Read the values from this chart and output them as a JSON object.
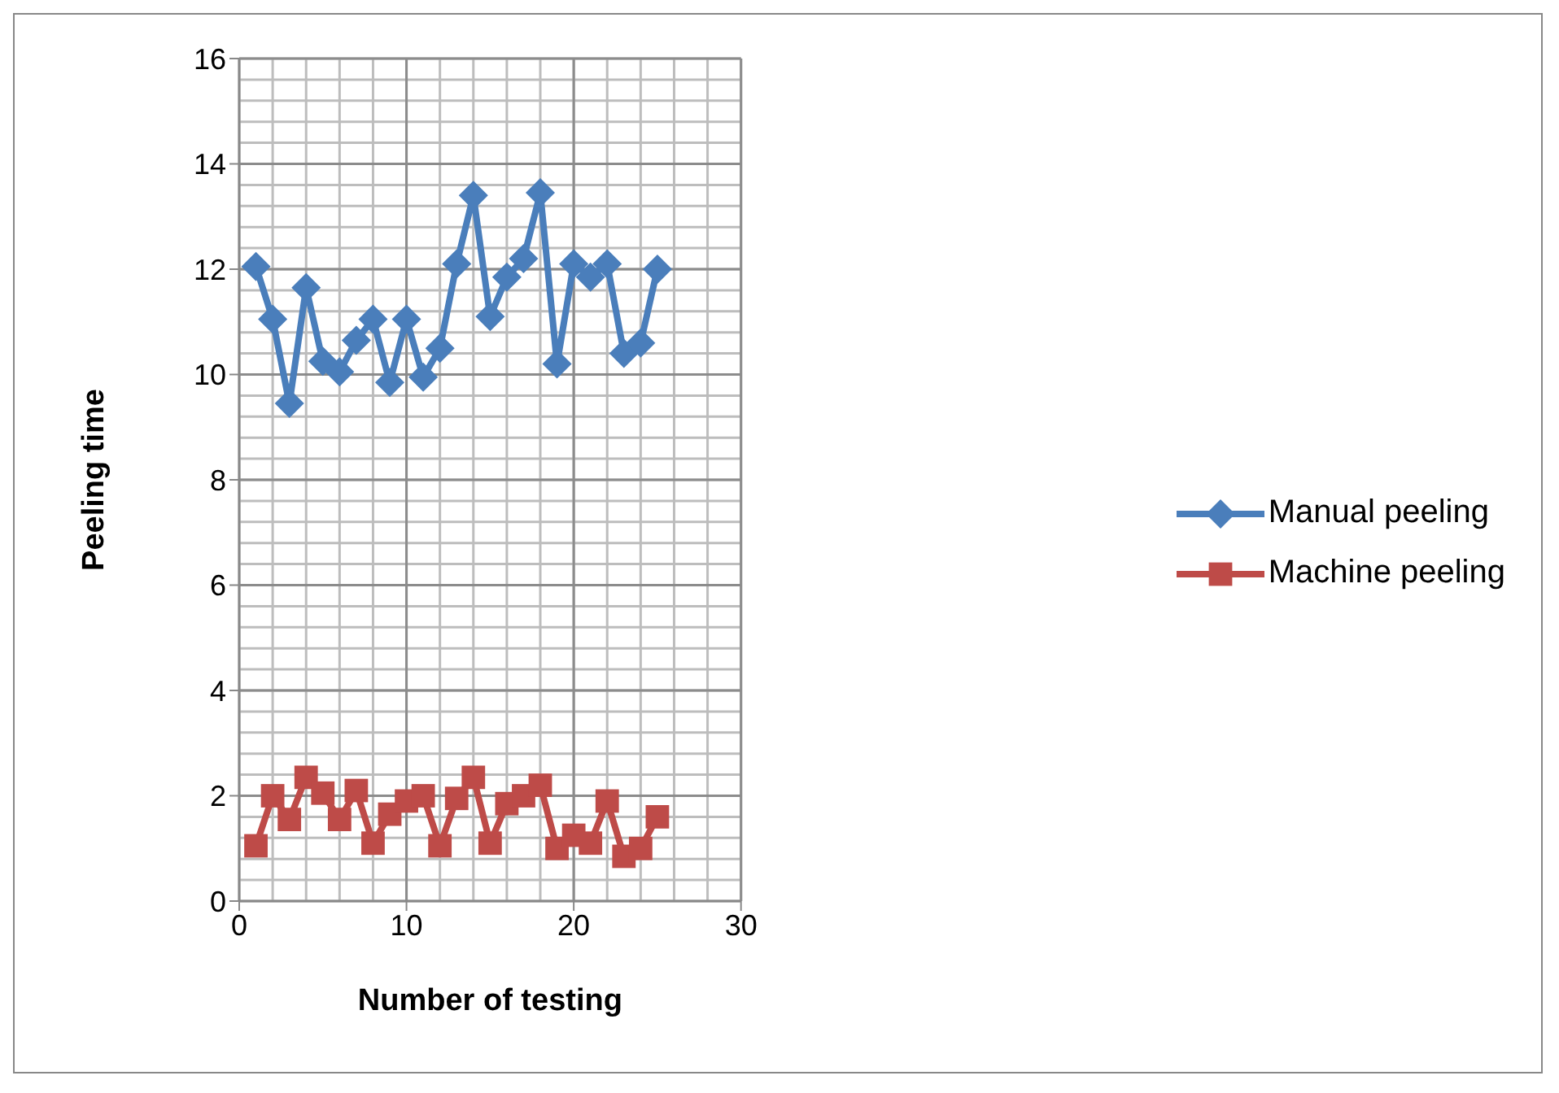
{
  "chart_data": {
    "type": "line",
    "xlabel": "Number of testing",
    "ylabel": "Peeling  time",
    "x": [
      1,
      2,
      3,
      4,
      5,
      6,
      7,
      8,
      9,
      10,
      11,
      12,
      13,
      14,
      15,
      16,
      17,
      18,
      19,
      20,
      21,
      22,
      23,
      24,
      25
    ],
    "series": [
      {
        "name": "Manual peeling",
        "color": "#4a7ebb",
        "marker": "diamond",
        "values": [
          12.05,
          11.05,
          9.45,
          11.65,
          10.25,
          10.05,
          10.65,
          11.05,
          9.85,
          11.05,
          9.95,
          10.5,
          12.1,
          13.4,
          11.1,
          11.85,
          12.2,
          13.45,
          10.2,
          12.1,
          11.85,
          12.1,
          10.4,
          10.6,
          12.0
        ]
      },
      {
        "name": "Machine peeling",
        "color": "#be4b48",
        "marker": "square",
        "values": [
          1.05,
          2.0,
          1.55,
          2.35,
          2.05,
          1.55,
          2.1,
          1.1,
          1.65,
          1.9,
          2.0,
          1.05,
          1.95,
          2.35,
          1.1,
          1.85,
          2.0,
          2.2,
          1.0,
          1.25,
          1.1,
          1.9,
          0.85,
          1.0,
          1.6
        ]
      }
    ],
    "xlim": [
      0,
      30
    ],
    "xticks": [
      0,
      10,
      20,
      30
    ],
    "ylim": [
      0,
      16
    ],
    "yticks": [
      0,
      2,
      4,
      6,
      8,
      10,
      12,
      14,
      16
    ],
    "grid": true,
    "legend": "right"
  }
}
